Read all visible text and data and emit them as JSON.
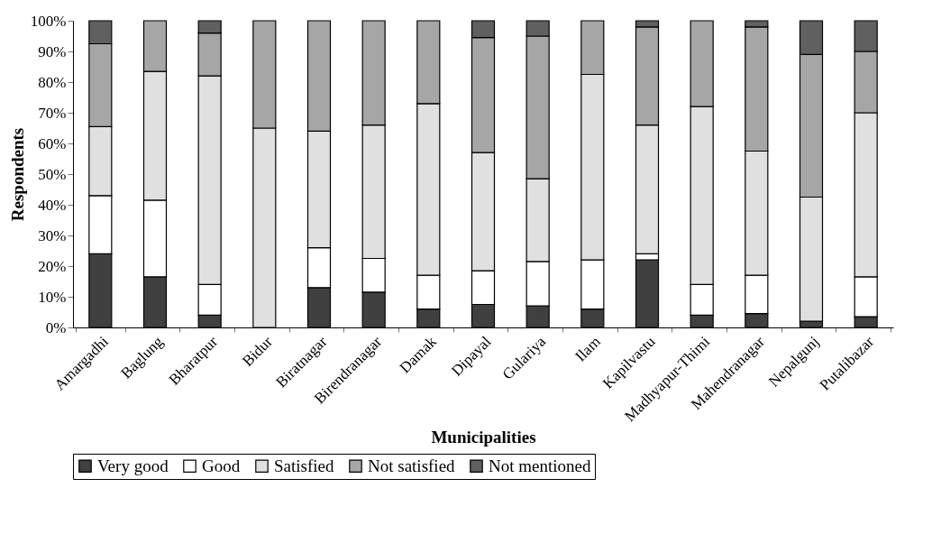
{
  "chart_data": {
    "type": "bar",
    "stacked": true,
    "xlabel": "Municipalities",
    "ylabel": "Respondents",
    "categories": [
      "Amargadhi",
      "Baglung",
      "Bharatpur",
      "Bidur",
      "Biratnagar",
      "Birendranagar",
      "Damak",
      "Dipayal",
      "Gulariya",
      "Ilam",
      "Kapilvastu",
      "Madhyapur-Thimi",
      "Mahendranagar",
      "Nepalgunj",
      "Putalibazar"
    ],
    "series": [
      {
        "name": "Very good",
        "color": "#404040",
        "values": [
          24,
          16.5,
          4,
          0,
          13,
          11.5,
          6,
          7.5,
          7,
          6,
          22,
          4,
          4.5,
          2,
          3.5
        ]
      },
      {
        "name": "Good",
        "color": "#ffffff",
        "values": [
          19,
          25,
          10,
          0,
          13,
          11,
          11,
          11,
          14.5,
          16,
          2,
          10,
          12.5,
          0,
          13
        ]
      },
      {
        "name": "Satisfied",
        "color": "#e0e0e0",
        "values": [
          22.5,
          42,
          68,
          65,
          38,
          43.5,
          56,
          38.5,
          27,
          60.5,
          42,
          58,
          40.5,
          40.5,
          53.5
        ]
      },
      {
        "name": "Not satisfied",
        "color": "#a6a6a6",
        "values": [
          27,
          16.5,
          14,
          35,
          36,
          34,
          27,
          37.5,
          46.5,
          17.5,
          32,
          28,
          40.5,
          46.5,
          20
        ]
      },
      {
        "name": "Not mentioned",
        "color": "#606060",
        "values": [
          7.5,
          0,
          4,
          0,
          0,
          0,
          0,
          5.5,
          5,
          0,
          2,
          0,
          2,
          11,
          10
        ]
      }
    ],
    "ylim": [
      0,
      100
    ],
    "yticks": [
      {
        "value": 0,
        "label": "0%"
      },
      {
        "value": 10,
        "label": "10%"
      },
      {
        "value": 20,
        "label": "20%"
      },
      {
        "value": 30,
        "label": "30%"
      },
      {
        "value": 40,
        "label": "40%"
      },
      {
        "value": 50,
        "label": "50%"
      },
      {
        "value": 60,
        "label": "60%"
      },
      {
        "value": 70,
        "label": "70%"
      },
      {
        "value": 80,
        "label": "80%"
      },
      {
        "value": 90,
        "label": "90%"
      },
      {
        "value": 100,
        "label": "100%"
      }
    ],
    "grid": false,
    "legend": "bottom"
  }
}
